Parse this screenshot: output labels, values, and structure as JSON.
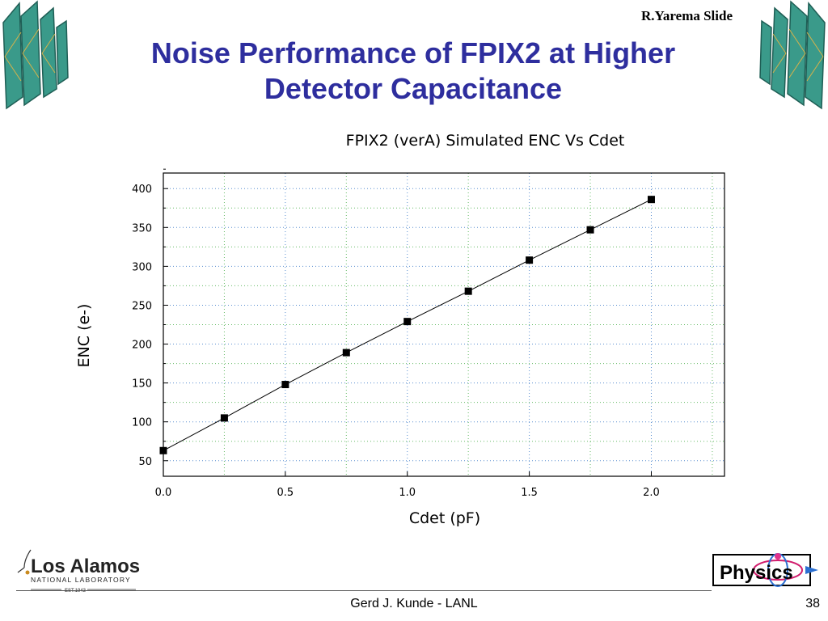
{
  "slide": {
    "credit": "R.Yarema Slide",
    "title_line1": "Noise Performance of FPIX2 at Higher",
    "title_line2": "Detector Capacitance",
    "footer_author": "Gerd J. Kunde - LANL",
    "slide_number": "38",
    "logo_left": {
      "name": "Los Alamos",
      "subtitle": "NATIONAL LABORATORY",
      "est": "EST.1943"
    },
    "logo_right": {
      "text": "Physics"
    },
    "decoration_icon": "detector-wedge-array-icon",
    "colors": {
      "title": "#2e2e9e",
      "wedge_fill": "#3a9a8a",
      "wedge_dark": "#1f5e55",
      "wedge_ray": "#d8b24a"
    }
  },
  "chart_data": {
    "type": "scatter",
    "title": "FPIX2 (verA) Simulated ENC Vs Cdet",
    "xlabel": "Cdet (pF)",
    "ylabel": "ENC (e-)",
    "xlim": [
      0.0,
      2.3
    ],
    "ylim": [
      30,
      420
    ],
    "xticks": [
      "0.0",
      "0.5",
      "1.0",
      "1.5",
      "2.0"
    ],
    "yticks": [
      "50",
      "100",
      "150",
      "200",
      "250",
      "300",
      "350",
      "400"
    ],
    "grid": true,
    "series": [
      {
        "x": [
          0.0,
          0.25,
          0.5,
          0.75,
          1.0,
          1.25,
          1.5,
          1.75,
          2.0
        ],
        "y": [
          63,
          105,
          148,
          189,
          229,
          268,
          308,
          347,
          386
        ],
        "marker": "square",
        "line": true,
        "color": "#000000"
      }
    ]
  }
}
